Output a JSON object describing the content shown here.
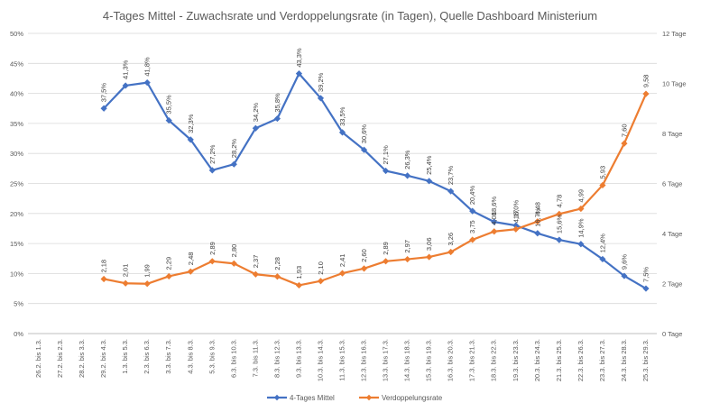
{
  "chart_data": {
    "type": "line",
    "title": "4-Tages Mittel - Zuwachsrate und Verdoppelungsrate (in Tagen), Quelle Dashboard Ministerium",
    "categories": [
      "26.2. bis 1.3.",
      "27.2. bis 2.3.",
      "28.2. bis 3.3.",
      "29.2. bis 4.3.",
      "1.3. bis 5.3.",
      "2.3. bis 6.3.",
      "3.3. bis 7.3.",
      "4.3. bis 8.3.",
      "5.3. bis 9.3.",
      "6.3. bis 10.3.",
      "7.3. bis 11.3.",
      "8.3. bis 12.3.",
      "9.3. bis 13.3.",
      "10.3. bis 14.3.",
      "11.3. bis 15.3.",
      "12.3. bis 16.3.",
      "13.3. bis 17.3.",
      "14.3. bis 18.3.",
      "15.3. bis 19.3.",
      "16.3. bis 20.3.",
      "17.3. bis 21.3.",
      "18.3. bis 22.3.",
      "19.3. bis 23.3.",
      "20.3. bis 24.3.",
      "21.3. bis 25.3.",
      "22.3. bis 26.3.",
      "23.3. bis 27.3.",
      "24.3. bis 28.3.",
      "25.3. bis 29.3."
    ],
    "left_axis": {
      "ylim": [
        0,
        50
      ],
      "ticks": [
        0,
        5,
        10,
        15,
        20,
        25,
        30,
        35,
        40,
        45,
        50
      ],
      "tick_labels": [
        "0%",
        "5%",
        "10%",
        "15%",
        "20%",
        "25%",
        "30%",
        "35%",
        "40%",
        "45%",
        "50%"
      ]
    },
    "right_axis": {
      "ylim": [
        0,
        12
      ],
      "ticks": [
        0,
        2,
        4,
        6,
        8,
        10,
        12
      ],
      "tick_labels": [
        "0 Tage",
        "2 Tage",
        "4 Tage",
        "6 Tage",
        "8 Tage",
        "10 Tage",
        "12 Tage"
      ]
    },
    "grid": true,
    "legend_position": "bottom",
    "series": [
      {
        "name": "4-Tages Mittel",
        "axis": "left",
        "color": "#4472C4",
        "marker": "diamond",
        "values": [
          null,
          null,
          null,
          37.5,
          41.3,
          41.8,
          35.5,
          32.3,
          27.2,
          28.2,
          34.2,
          35.8,
          43.3,
          39.2,
          33.5,
          30.6,
          27.1,
          26.3,
          25.4,
          23.7,
          20.4,
          18.6,
          18.0,
          16.7,
          15.6,
          14.9,
          12.4,
          9.6,
          7.5
        ],
        "labels": [
          "",
          "",
          "",
          "37,5%",
          "41,3%",
          "41,8%",
          "35,5%",
          "32,3%",
          "27,2%",
          "28,2%",
          "34,2%",
          "35,8%",
          "43,3%",
          "39,2%",
          "33,5%",
          "30,6%",
          "27,1%",
          "26,3%",
          "25,4%",
          "23,7%",
          "20,4%",
          "18,6%",
          "18,0%",
          "16,7%",
          "15,6%",
          "14,9%",
          "12,4%",
          "9,6%",
          "7,5%"
        ]
      },
      {
        "name": "Verdoppelungsrate",
        "axis": "right",
        "color": "#ED7D31",
        "marker": "diamond",
        "values": [
          null,
          null,
          null,
          2.18,
          2.01,
          1.99,
          2.29,
          2.48,
          2.89,
          2.8,
          2.37,
          2.28,
          1.93,
          2.1,
          2.41,
          2.6,
          2.89,
          2.97,
          3.06,
          3.26,
          3.75,
          4.08,
          4.17,
          4.48,
          4.78,
          4.99,
          5.93,
          7.6,
          9.58
        ],
        "labels": [
          "",
          "",
          "",
          "2,18",
          "2,01",
          "1,99",
          "2,29",
          "2,48",
          "2,89",
          "2,80",
          "2,37",
          "2,28",
          "1,93",
          "2,10",
          "2,41",
          "2,60",
          "2,89",
          "2,97",
          "3,06",
          "3,26",
          "3,75",
          "4,08",
          "4,17",
          "4,48",
          "4,78",
          "4,99",
          "5,93",
          "7,60",
          "9,58"
        ]
      }
    ]
  }
}
